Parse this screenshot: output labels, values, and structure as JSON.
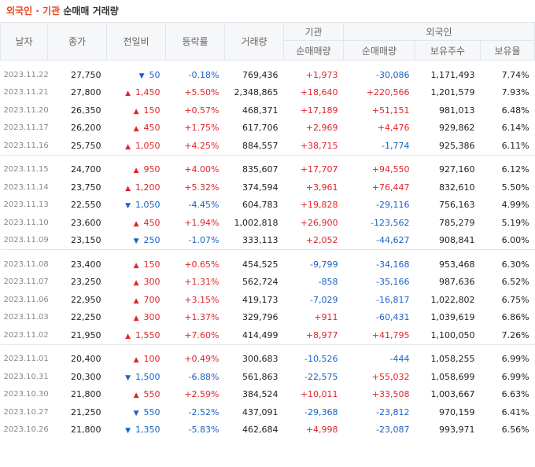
{
  "title_part1": "외국인 · 기관",
  "title_part2": "순매매 거래량",
  "headers": {
    "date": "날자",
    "close": "종가",
    "change": "전일비",
    "rate": "등락률",
    "volume": "거래량",
    "inst": "기관",
    "foreign": "외국인",
    "inst_net": "순매매량",
    "foreign_net": "순매매량",
    "holdings": "보유주수",
    "ratio": "보유율"
  },
  "groups": [
    [
      {
        "date": "2023.11.22",
        "close": "27,750",
        "dir": "down",
        "change": "50",
        "rate": "-0.18%",
        "volume": "769,436",
        "inst": "+1,973",
        "foreign": "-30,086",
        "hold": "1,171,493",
        "ratio": "7.74%"
      },
      {
        "date": "2023.11.21",
        "close": "27,800",
        "dir": "up",
        "change": "1,450",
        "rate": "+5.50%",
        "volume": "2,348,865",
        "inst": "+18,640",
        "foreign": "+220,566",
        "hold": "1,201,579",
        "ratio": "7.93%"
      },
      {
        "date": "2023.11.20",
        "close": "26,350",
        "dir": "up",
        "change": "150",
        "rate": "+0.57%",
        "volume": "468,371",
        "inst": "+17,189",
        "foreign": "+51,151",
        "hold": "981,013",
        "ratio": "6.48%"
      },
      {
        "date": "2023.11.17",
        "close": "26,200",
        "dir": "up",
        "change": "450",
        "rate": "+1.75%",
        "volume": "617,706",
        "inst": "+2,969",
        "foreign": "+4,476",
        "hold": "929,862",
        "ratio": "6.14%"
      },
      {
        "date": "2023.11.16",
        "close": "25,750",
        "dir": "up",
        "change": "1,050",
        "rate": "+4.25%",
        "volume": "884,557",
        "inst": "+38,715",
        "foreign": "-1,774",
        "hold": "925,386",
        "ratio": "6.11%"
      }
    ],
    [
      {
        "date": "2023.11.15",
        "close": "24,700",
        "dir": "up",
        "change": "950",
        "rate": "+4.00%",
        "volume": "835,607",
        "inst": "+17,707",
        "foreign": "+94,550",
        "hold": "927,160",
        "ratio": "6.12%"
      },
      {
        "date": "2023.11.14",
        "close": "23,750",
        "dir": "up",
        "change": "1,200",
        "rate": "+5.32%",
        "volume": "374,594",
        "inst": "+3,961",
        "foreign": "+76,447",
        "hold": "832,610",
        "ratio": "5.50%"
      },
      {
        "date": "2023.11.13",
        "close": "22,550",
        "dir": "down",
        "change": "1,050",
        "rate": "-4.45%",
        "volume": "604,783",
        "inst": "+19,828",
        "foreign": "-29,116",
        "hold": "756,163",
        "ratio": "4.99%"
      },
      {
        "date": "2023.11.10",
        "close": "23,600",
        "dir": "up",
        "change": "450",
        "rate": "+1.94%",
        "volume": "1,002,818",
        "inst": "+26,900",
        "foreign": "-123,562",
        "hold": "785,279",
        "ratio": "5.19%"
      },
      {
        "date": "2023.11.09",
        "close": "23,150",
        "dir": "down",
        "change": "250",
        "rate": "-1.07%",
        "volume": "333,113",
        "inst": "+2,052",
        "foreign": "-44,627",
        "hold": "908,841",
        "ratio": "6.00%"
      }
    ],
    [
      {
        "date": "2023.11.08",
        "close": "23,400",
        "dir": "up",
        "change": "150",
        "rate": "+0.65%",
        "volume": "454,525",
        "inst": "-9,799",
        "foreign": "-34,168",
        "hold": "953,468",
        "ratio": "6.30%"
      },
      {
        "date": "2023.11.07",
        "close": "23,250",
        "dir": "up",
        "change": "300",
        "rate": "+1.31%",
        "volume": "562,724",
        "inst": "-858",
        "foreign": "-35,166",
        "hold": "987,636",
        "ratio": "6.52%"
      },
      {
        "date": "2023.11.06",
        "close": "22,950",
        "dir": "up",
        "change": "700",
        "rate": "+3.15%",
        "volume": "419,173",
        "inst": "-7,029",
        "foreign": "-16,817",
        "hold": "1,022,802",
        "ratio": "6.75%"
      },
      {
        "date": "2023.11.03",
        "close": "22,250",
        "dir": "up",
        "change": "300",
        "rate": "+1.37%",
        "volume": "329,796",
        "inst": "+911",
        "foreign": "-60,431",
        "hold": "1,039,619",
        "ratio": "6.86%"
      },
      {
        "date": "2023.11.02",
        "close": "21,950",
        "dir": "up",
        "change": "1,550",
        "rate": "+7.60%",
        "volume": "414,499",
        "inst": "+8,977",
        "foreign": "+41,795",
        "hold": "1,100,050",
        "ratio": "7.26%"
      }
    ],
    [
      {
        "date": "2023.11.01",
        "close": "20,400",
        "dir": "up",
        "change": "100",
        "rate": "+0.49%",
        "volume": "300,683",
        "inst": "-10,526",
        "foreign": "-444",
        "hold": "1,058,255",
        "ratio": "6.99%"
      },
      {
        "date": "2023.10.31",
        "close": "20,300",
        "dir": "down",
        "change": "1,500",
        "rate": "-6.88%",
        "volume": "561,863",
        "inst": "-22,575",
        "foreign": "+55,032",
        "hold": "1,058,699",
        "ratio": "6.99%"
      },
      {
        "date": "2023.10.30",
        "close": "21,800",
        "dir": "up",
        "change": "550",
        "rate": "+2.59%",
        "volume": "384,524",
        "inst": "+10,011",
        "foreign": "+33,508",
        "hold": "1,003,667",
        "ratio": "6.63%"
      },
      {
        "date": "2023.10.27",
        "close": "21,250",
        "dir": "down",
        "change": "550",
        "rate": "-2.52%",
        "volume": "437,091",
        "inst": "-29,368",
        "foreign": "-23,812",
        "hold": "970,159",
        "ratio": "6.41%"
      },
      {
        "date": "2023.10.26",
        "close": "21,800",
        "dir": "down",
        "change": "1,350",
        "rate": "-5.83%",
        "volume": "462,684",
        "inst": "+4,998",
        "foreign": "-23,087",
        "hold": "993,971",
        "ratio": "6.56%"
      }
    ]
  ]
}
